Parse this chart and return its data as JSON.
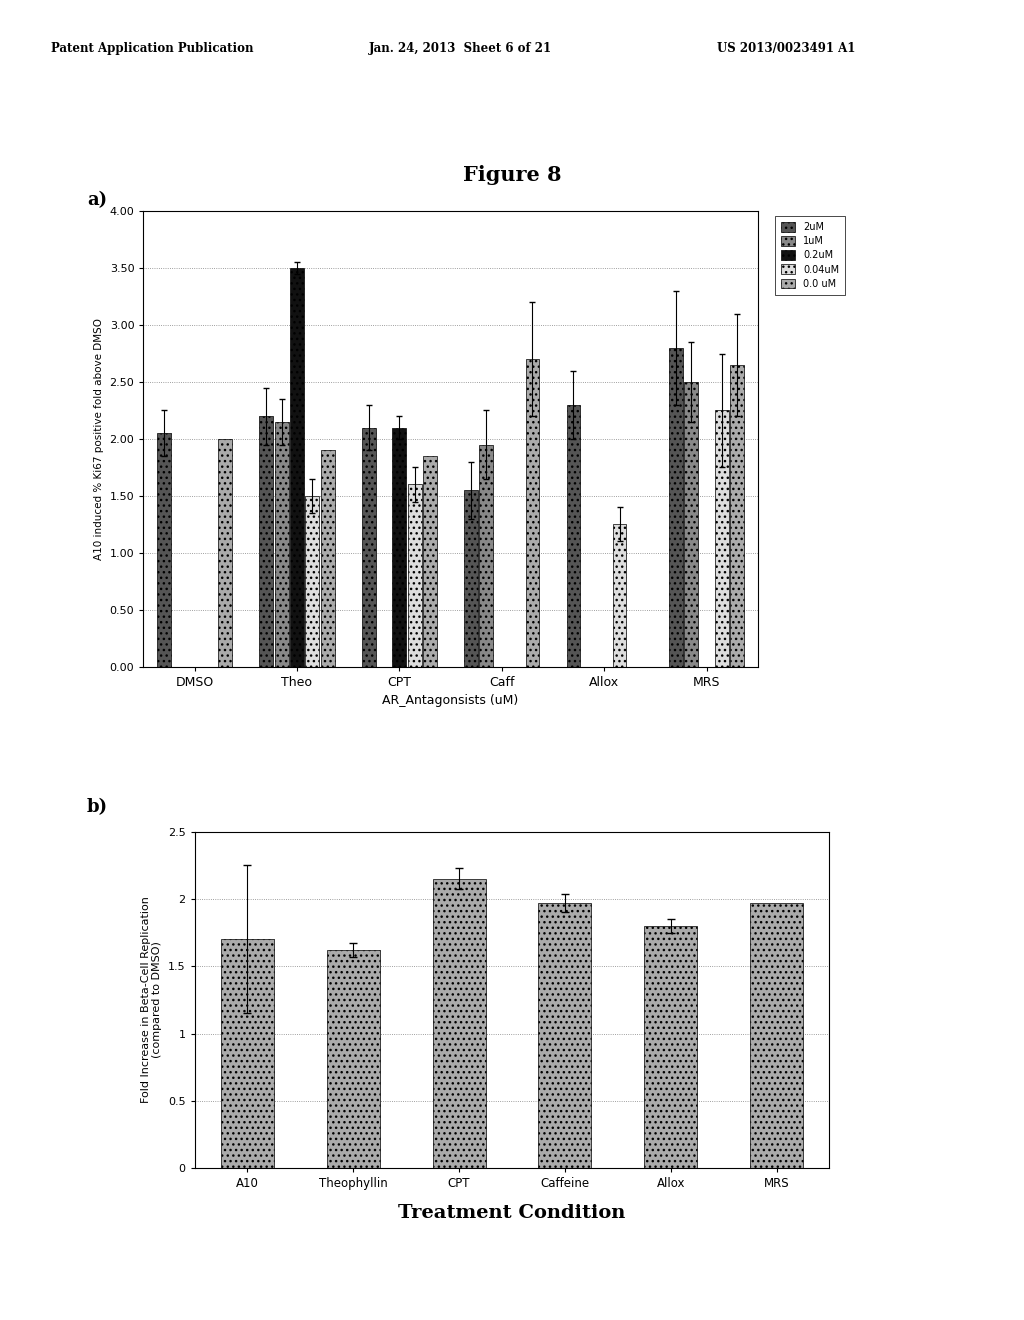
{
  "title": "Figure 8",
  "header_left": "Patent Application Publication",
  "header_center": "Jan. 24, 2013  Sheet 6 of 21",
  "header_right": "US 2013/0023491 A1",
  "panel_a": {
    "label": "a)",
    "categories": [
      "DMSO",
      "Theo",
      "CPT",
      "Caff",
      "Allox",
      "MRS"
    ],
    "xlabel": "AR_Antagonsists (uM)",
    "ylabel": "A10 induced % Ki67 positive fold above DMSO",
    "ylim": [
      0.0,
      4.0
    ],
    "yticks": [
      0.0,
      0.5,
      1.0,
      1.5,
      2.0,
      2.5,
      3.0,
      3.5,
      4.0
    ],
    "legend_labels": [
      "2uM",
      "1uM",
      "0.2uM",
      "0.04uM",
      "0.0 uM"
    ],
    "series_data": {
      "DMSO": [
        2.05,
        null,
        null,
        null,
        2.0
      ],
      "Theo": [
        2.2,
        2.15,
        3.5,
        1.5,
        1.9
      ],
      "CPT": [
        2.1,
        null,
        2.1,
        1.6,
        1.85
      ],
      "Caff": [
        1.55,
        1.95,
        null,
        null,
        2.7
      ],
      "Allox": [
        2.3,
        null,
        null,
        1.25,
        null
      ],
      "MRS": [
        2.8,
        2.5,
        null,
        2.25,
        2.65
      ]
    },
    "series_errors": {
      "DMSO": [
        0.2,
        null,
        null,
        null,
        0.0
      ],
      "Theo": [
        0.25,
        0.2,
        0.05,
        0.15,
        0.0
      ],
      "CPT": [
        0.2,
        null,
        0.1,
        0.15,
        0.0
      ],
      "Caff": [
        0.25,
        0.3,
        null,
        null,
        0.5
      ],
      "Allox": [
        0.3,
        null,
        null,
        0.15,
        null
      ],
      "MRS": [
        0.5,
        0.35,
        null,
        0.5,
        0.45
      ]
    }
  },
  "panel_b": {
    "label": "b)",
    "categories": [
      "A10",
      "Theophyllin",
      "CPT",
      "Caffeine",
      "Allox",
      "MRS"
    ],
    "xlabel": "Treatment Condition",
    "ylabel": "Fold Increase in Beta-Cell Replication\n(compared to DMSO)",
    "ylim": [
      0,
      2.5
    ],
    "yticks": [
      0,
      0.5,
      1,
      1.5,
      2,
      2.5
    ],
    "values": [
      1.7,
      1.62,
      2.15,
      1.97,
      1.8,
      1.97
    ],
    "errors": [
      0.55,
      0.05,
      0.08,
      0.07,
      0.05,
      0.0
    ]
  }
}
